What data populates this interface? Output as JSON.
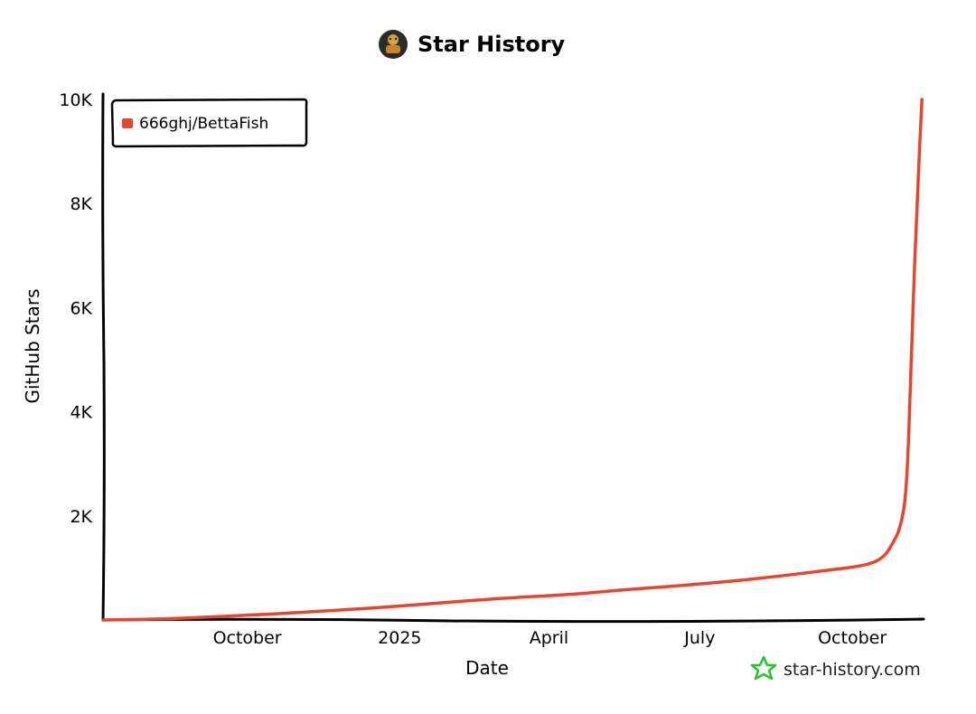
{
  "colors": {
    "series": "#e8442e",
    "axis": "#000000",
    "background": "#ffffff",
    "watermark_star": "#22c52a",
    "avatar": "#2b2b2b"
  },
  "header": {
    "title": "Star History",
    "avatar_icon": "avatar-icon"
  },
  "watermark": {
    "text": "star-history.com",
    "icon": "star-icon"
  },
  "chart_data": {
    "type": "line",
    "title": "Star History",
    "xlabel": "Date",
    "ylabel": "GitHub Stars",
    "x_ticks": [
      "October",
      "2025",
      "April",
      "July",
      "October"
    ],
    "x_tick_dates": [
      "2024-10-01",
      "2025-01-01",
      "2025-04-01",
      "2025-07-01",
      "2025-10-01"
    ],
    "x_range": [
      "2024-07-06",
      "2025-11-13"
    ],
    "y_ticks": [
      "2K",
      "4K",
      "6K",
      "8K",
      "10K"
    ],
    "y_tick_values": [
      2000,
      4000,
      6000,
      8000,
      10000
    ],
    "ylim": [
      0,
      10000
    ],
    "grid": false,
    "legend_position": "top-left",
    "series": [
      {
        "name": "666ghj/BettaFish",
        "x": [
          "2024-07-06",
          "2024-08-15",
          "2024-09-15",
          "2024-10-15",
          "2024-11-15",
          "2024-12-15",
          "2025-01-15",
          "2025-02-15",
          "2025-03-15",
          "2025-04-15",
          "2025-05-15",
          "2025-06-15",
          "2025-07-15",
          "2025-08-15",
          "2025-09-15",
          "2025-10-10",
          "2025-10-20",
          "2025-10-25",
          "2025-10-30",
          "2025-11-03",
          "2025-11-06",
          "2025-11-09",
          "2025-11-12"
        ],
        "y": [
          0,
          20,
          70,
          110,
          170,
          230,
          300,
          380,
          440,
          490,
          580,
          650,
          730,
          830,
          950,
          1050,
          1200,
          1450,
          1750,
          2500,
          5500,
          8000,
          10000
        ]
      }
    ]
  }
}
